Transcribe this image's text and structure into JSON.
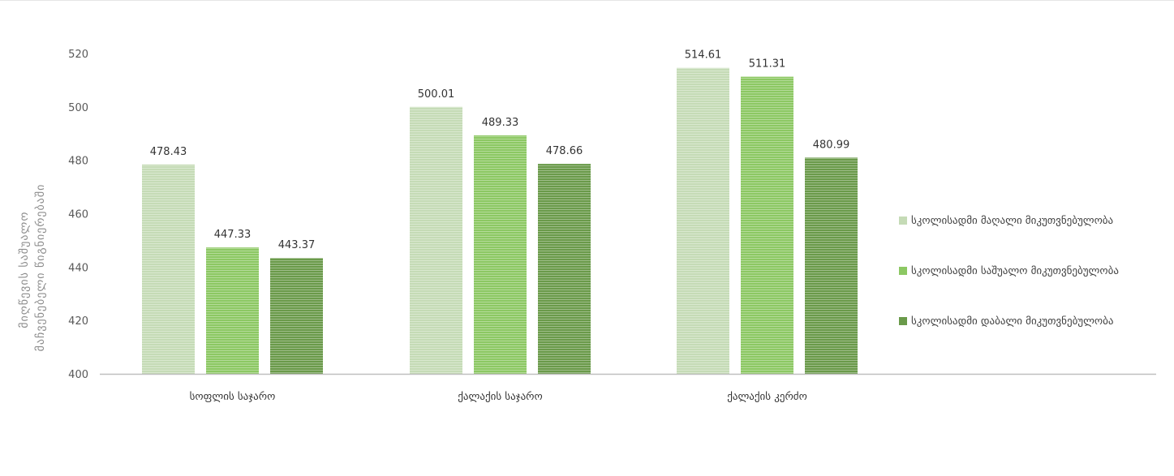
{
  "chart_data": {
    "type": "bar",
    "ylabel": "მიღწევის საშუალო მაჩვენებელი წიგნიერებაში",
    "categories": [
      "სოფლის საჯარო",
      "ქალაქის საჯარო",
      "ქალაქის კერძო"
    ],
    "series": [
      {
        "name": "სკოლისადმი მაღალი მიკუთვნებულობა",
        "color": "#c5dbb6",
        "values": [
          478.43,
          500.01,
          514.61
        ]
      },
      {
        "name": "სკოლისადმი საშუალო მიკუთვნებულობა",
        "color": "#8cc863",
        "values": [
          447.33,
          489.33,
          511.31
        ]
      },
      {
        "name": "სკოლისადმი დაბალი მიკუთვნებულობა",
        "color": "#6a9a4a",
        "values": [
          443.37,
          478.66,
          480.99
        ]
      }
    ],
    "data_labels": [
      [
        "478.43",
        "447.33",
        "443.37"
      ],
      [
        "500.01",
        "489.33",
        "478.66"
      ],
      [
        "514.61",
        "511.31",
        "480.99"
      ]
    ],
    "ylim": [
      400,
      520
    ],
    "yticks": [
      400,
      420,
      440,
      460,
      480,
      500,
      520
    ],
    "grid": false,
    "legend": "right"
  }
}
